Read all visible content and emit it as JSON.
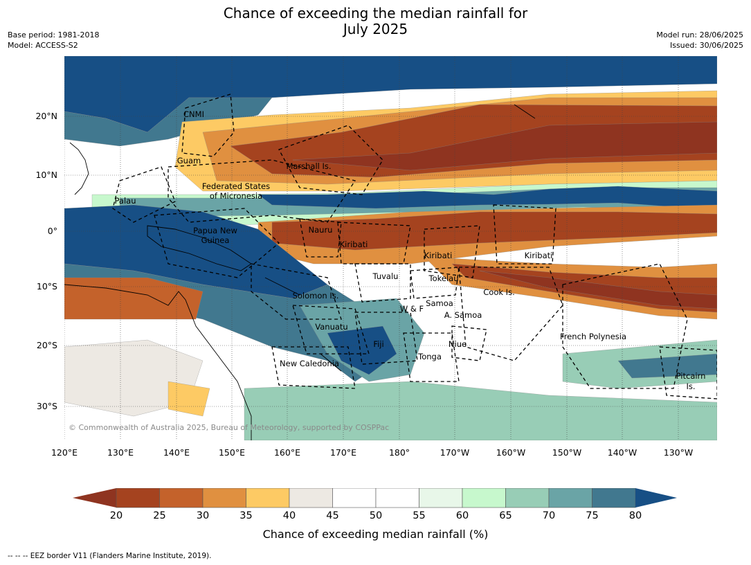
{
  "title_line1": "Chance of exceeding the median rainfall for",
  "title_line2": "July 2025",
  "base_period": "Base period: 1981-2018",
  "model": "Model: ACCESS-S2",
  "model_run": "Model run: 28/06/2025",
  "issued": "Issued: 30/06/2025",
  "copyright": "© Commonwealth of Australia 2025, Bureau of Meteorology, supported by COSPPac",
  "footer": "--  --  -- EEZ border V11 (Flanders Marine Institute, 2019).",
  "lat_ticks": [
    "20°N",
    "10°N",
    "0°",
    "10°S",
    "20°S",
    "30°S"
  ],
  "lon_ticks": [
    "120°E",
    "130°E",
    "140°E",
    "150°E",
    "160°E",
    "170°E",
    "180°",
    "170°W",
    "160°W",
    "150°W",
    "140°W",
    "130°W"
  ],
  "region_labels": [
    {
      "text": "CNMI"
    },
    {
      "text": "Guam"
    },
    {
      "text": "Marshall Is."
    },
    {
      "text": "Federated States"
    },
    {
      "text": "of Micronesia"
    },
    {
      "text": "Palau"
    },
    {
      "text": "Papua New"
    },
    {
      "text": "Guinea"
    },
    {
      "text": "Nauru"
    },
    {
      "text": "Kiribati"
    },
    {
      "text": "Kiribati"
    },
    {
      "text": "Kiribati"
    },
    {
      "text": "Tuvalu"
    },
    {
      "text": "Tokelau"
    },
    {
      "text": "Cook Is."
    },
    {
      "text": "Solomon Is."
    },
    {
      "text": "W & F"
    },
    {
      "text": "Samoa"
    },
    {
      "text": "A. Samoa"
    },
    {
      "text": "Vanuatu"
    },
    {
      "text": "Fiji"
    },
    {
      "text": "Niue"
    },
    {
      "text": "French Polynesia"
    },
    {
      "text": "Tonga"
    },
    {
      "text": "New Caledonia"
    },
    {
      "text": "Pitcairn"
    },
    {
      "text": "Is."
    }
  ],
  "colorbar": {
    "label": "Chance of exceeding median rainfall (%)",
    "ticks": [
      "20",
      "25",
      "30",
      "35",
      "40",
      "45",
      "50",
      "55",
      "60",
      "65",
      "70",
      "75",
      "80"
    ],
    "colors": [
      "#a5431f",
      "#c4622b",
      "#e09040",
      "#fdca64",
      "#ede9e3",
      "#ffffff",
      "#ffffff",
      "#e8f7e9",
      "#c7f8cd",
      "#98cdb6",
      "#6aa4a6",
      "#41788f"
    ],
    "under_color": "#8f3420",
    "over_color": "#174f85"
  },
  "map_colors": {
    "base": "#ffffff",
    "grey": "#ede9e3",
    "lightgreen": "#c7f8cd",
    "green": "#98cdb6",
    "teal": "#6aa4a6",
    "steel": "#41788f",
    "navy": "#174f85",
    "yellow": "#fdca64",
    "orange": "#e09040",
    "rust": "#c4622b",
    "brown": "#a5431f",
    "dark": "#8f3420"
  }
}
